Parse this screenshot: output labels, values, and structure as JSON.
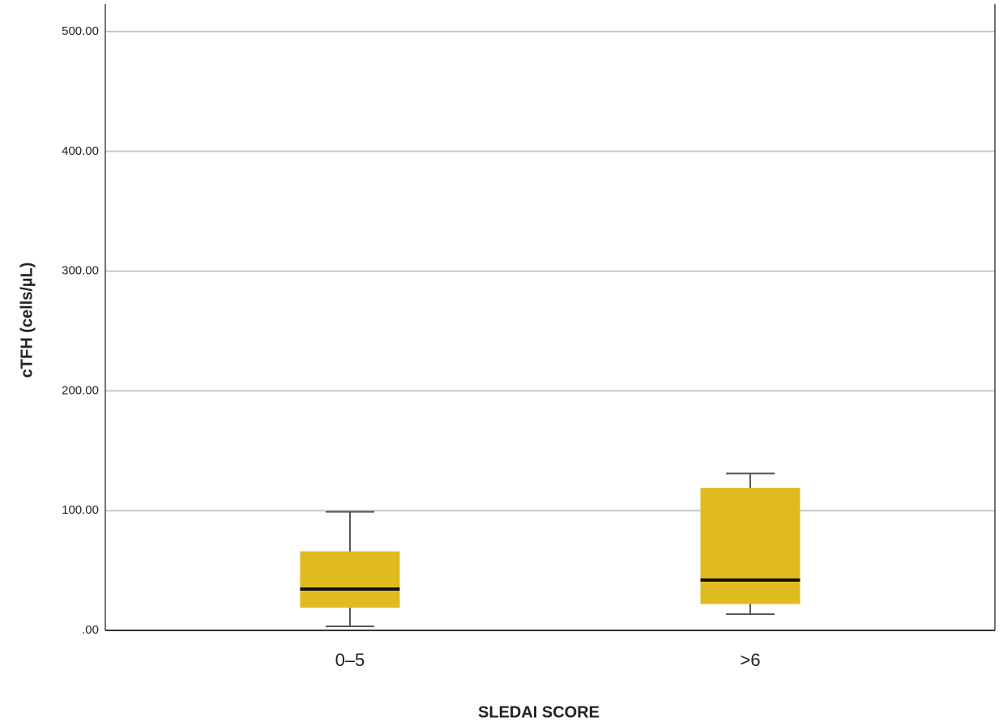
{
  "chart_data": {
    "type": "box",
    "x_label": "SLEDAI SCORE",
    "y_label": "cTFH (cells/µL)",
    "categories": [
      "0–5",
      ">6"
    ],
    "color": "#e0bb1f",
    "boxes": [
      {
        "whisker_low": 3.4,
        "q1": 19,
        "median": 34.5,
        "q3": 66,
        "whisker_high": 99
      },
      {
        "whisker_low": 13.5,
        "q1": 22,
        "median": 42,
        "q3": 119,
        "whisker_high": 131
      }
    ],
    "ylim": [
      0,
      523
    ],
    "yticks": [
      {
        "value": 0,
        "label": ".00"
      },
      {
        "value": 100,
        "label": "100.00"
      },
      {
        "value": 200,
        "label": "200.00"
      },
      {
        "value": 300,
        "label": "300.00"
      },
      {
        "value": 400,
        "label": "400.00"
      },
      {
        "value": 500,
        "label": "500.00"
      }
    ],
    "grid": true
  }
}
